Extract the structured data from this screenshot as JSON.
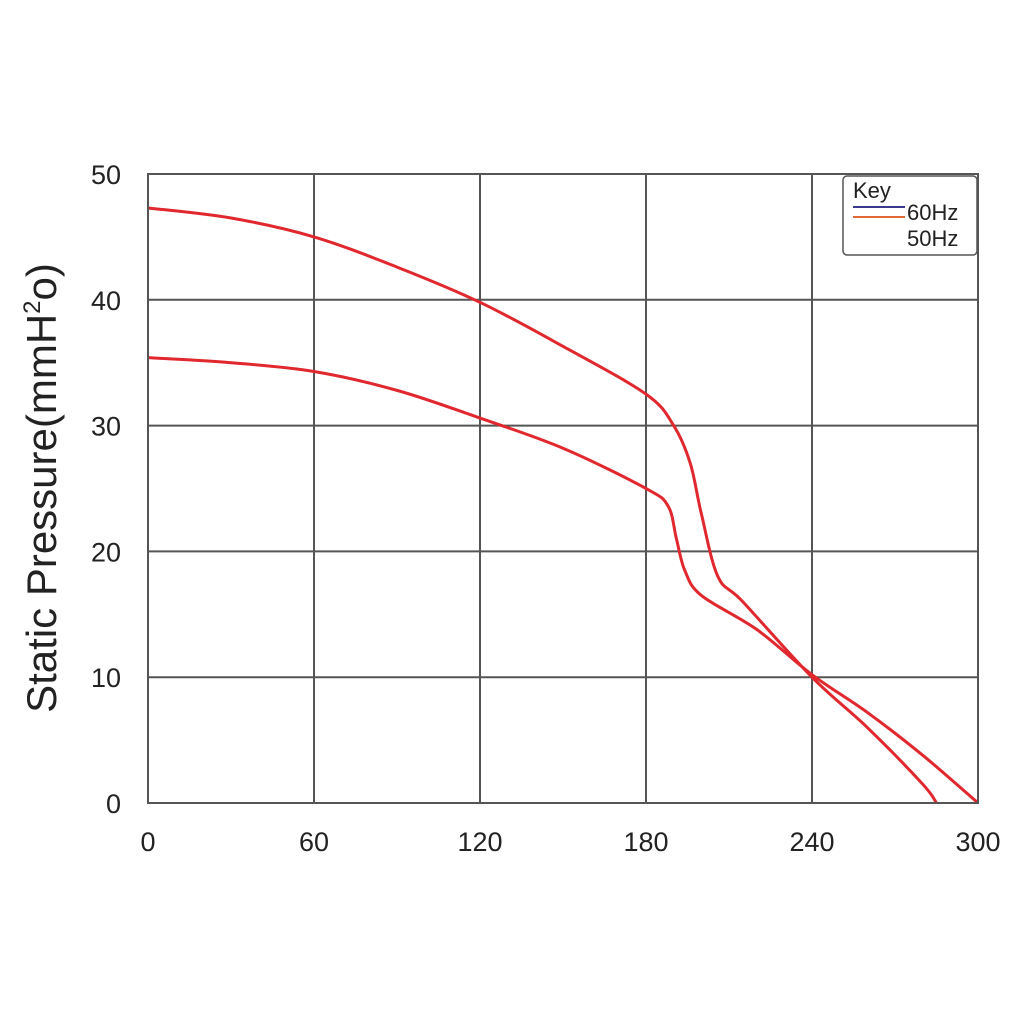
{
  "chart_data": {
    "type": "line",
    "title": "",
    "xlabel": "",
    "ylabel_main": "Static Pressure(mmH",
    "ylabel_sup": "2",
    "ylabel_tail": "o)",
    "xlim": [
      0,
      300
    ],
    "ylim": [
      0,
      50
    ],
    "xticks": [
      0,
      60,
      120,
      180,
      240,
      300
    ],
    "yticks": [
      0,
      10,
      20,
      30,
      40,
      50
    ],
    "grid": true,
    "legend": {
      "title": "Key",
      "placement": "top-right",
      "entries": [
        {
          "label": "60Hz",
          "color": "#3a3a8c"
        },
        {
          "label": "50Hz",
          "color": "#e26a3a"
        }
      ]
    },
    "series": [
      {
        "color": "#e0282e",
        "points": [
          [
            0,
            47.3
          ],
          [
            30,
            46.5
          ],
          [
            60,
            45.0
          ],
          [
            90,
            42.6
          ],
          [
            120,
            39.8
          ],
          [
            150,
            36.3
          ],
          [
            180,
            32.5
          ],
          [
            190,
            30.0
          ],
          [
            196,
            27.0
          ],
          [
            200,
            23.0
          ],
          [
            206,
            18.0
          ],
          [
            215,
            16.0
          ],
          [
            240,
            10.0
          ],
          [
            260,
            6.0
          ],
          [
            280,
            1.5
          ],
          [
            285,
            0
          ]
        ]
      },
      {
        "color": "#e0282e",
        "points": [
          [
            0,
            35.4
          ],
          [
            30,
            35.0
          ],
          [
            60,
            34.3
          ],
          [
            90,
            32.8
          ],
          [
            120,
            30.6
          ],
          [
            150,
            28.2
          ],
          [
            180,
            25.0
          ],
          [
            188,
            23.6
          ],
          [
            191,
            21.0
          ],
          [
            194,
            18.5
          ],
          [
            200,
            16.5
          ],
          [
            220,
            13.8
          ],
          [
            240,
            10.2
          ],
          [
            260,
            7.2
          ],
          [
            280,
            3.8
          ],
          [
            300,
            0
          ]
        ]
      }
    ]
  }
}
